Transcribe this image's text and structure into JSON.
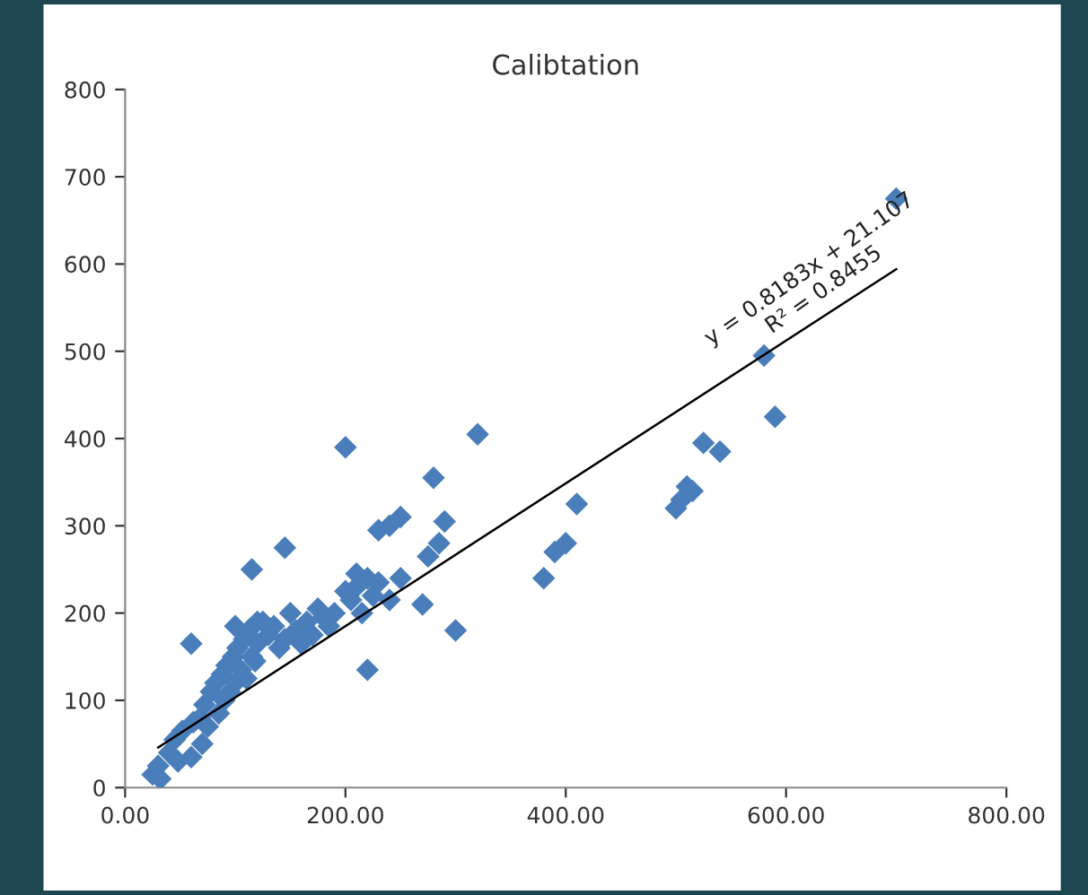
{
  "chart_data": {
    "type": "scatter",
    "title": "Calibtation",
    "series": [
      {
        "type": "scatter",
        "color": "#4a7ebb",
        "marker": "diamond",
        "x": [
          25,
          30,
          32,
          40,
          45,
          48,
          52,
          60,
          62,
          68,
          70,
          72,
          75,
          78,
          82,
          85,
          88,
          90,
          92,
          95,
          98,
          100,
          102,
          105,
          108,
          110,
          112,
          115,
          118,
          120,
          125,
          130,
          135,
          140,
          145,
          150,
          155,
          160,
          165,
          170,
          175,
          180,
          185,
          190,
          200,
          205,
          210,
          215,
          220,
          225,
          230,
          240,
          250,
          200,
          210,
          220,
          230,
          240,
          250,
          270,
          275,
          280,
          285,
          290,
          300,
          320,
          145,
          115,
          60,
          100,
          120,
          380,
          390,
          400,
          410,
          500,
          505,
          510,
          515,
          525,
          540,
          580,
          590,
          700
        ],
        "values": [
          15,
          25,
          10,
          40,
          55,
          30,
          65,
          35,
          75,
          80,
          50,
          95,
          70,
          110,
          120,
          85,
          130,
          100,
          140,
          110,
          150,
          120,
          160,
          135,
          170,
          125,
          180,
          150,
          145,
          165,
          190,
          175,
          185,
          160,
          170,
          200,
          180,
          165,
          190,
          175,
          205,
          195,
          185,
          200,
          225,
          215,
          230,
          200,
          240,
          220,
          235,
          215,
          240,
          390,
          245,
          135,
          295,
          300,
          310,
          210,
          265,
          355,
          280,
          305,
          180,
          405,
          275,
          250,
          165,
          185,
          190,
          240,
          270,
          280,
          325,
          320,
          330,
          345,
          340,
          395,
          385,
          495,
          425,
          675
        ]
      },
      {
        "type": "line",
        "color": "#000000",
        "x": [
          30,
          700
        ],
        "values": [
          46,
          594
        ]
      }
    ],
    "annotations": [
      "y = 0.8183x + 21.107\nR² = 0.8455"
    ],
    "xlim": [
      0,
      800
    ],
    "xticks": [
      {
        "value": 0,
        "label": "0.00"
      },
      {
        "value": 200,
        "label": "200.00"
      },
      {
        "value": 400,
        "label": "400.00"
      },
      {
        "value": 600,
        "label": "600.00"
      },
      {
        "value": 800,
        "label": "800.00"
      }
    ],
    "ylim": [
      0,
      800
    ],
    "yticks": [
      0,
      100,
      200,
      300,
      400,
      500,
      600,
      700,
      800
    ],
    "grid": false,
    "legend": false
  }
}
